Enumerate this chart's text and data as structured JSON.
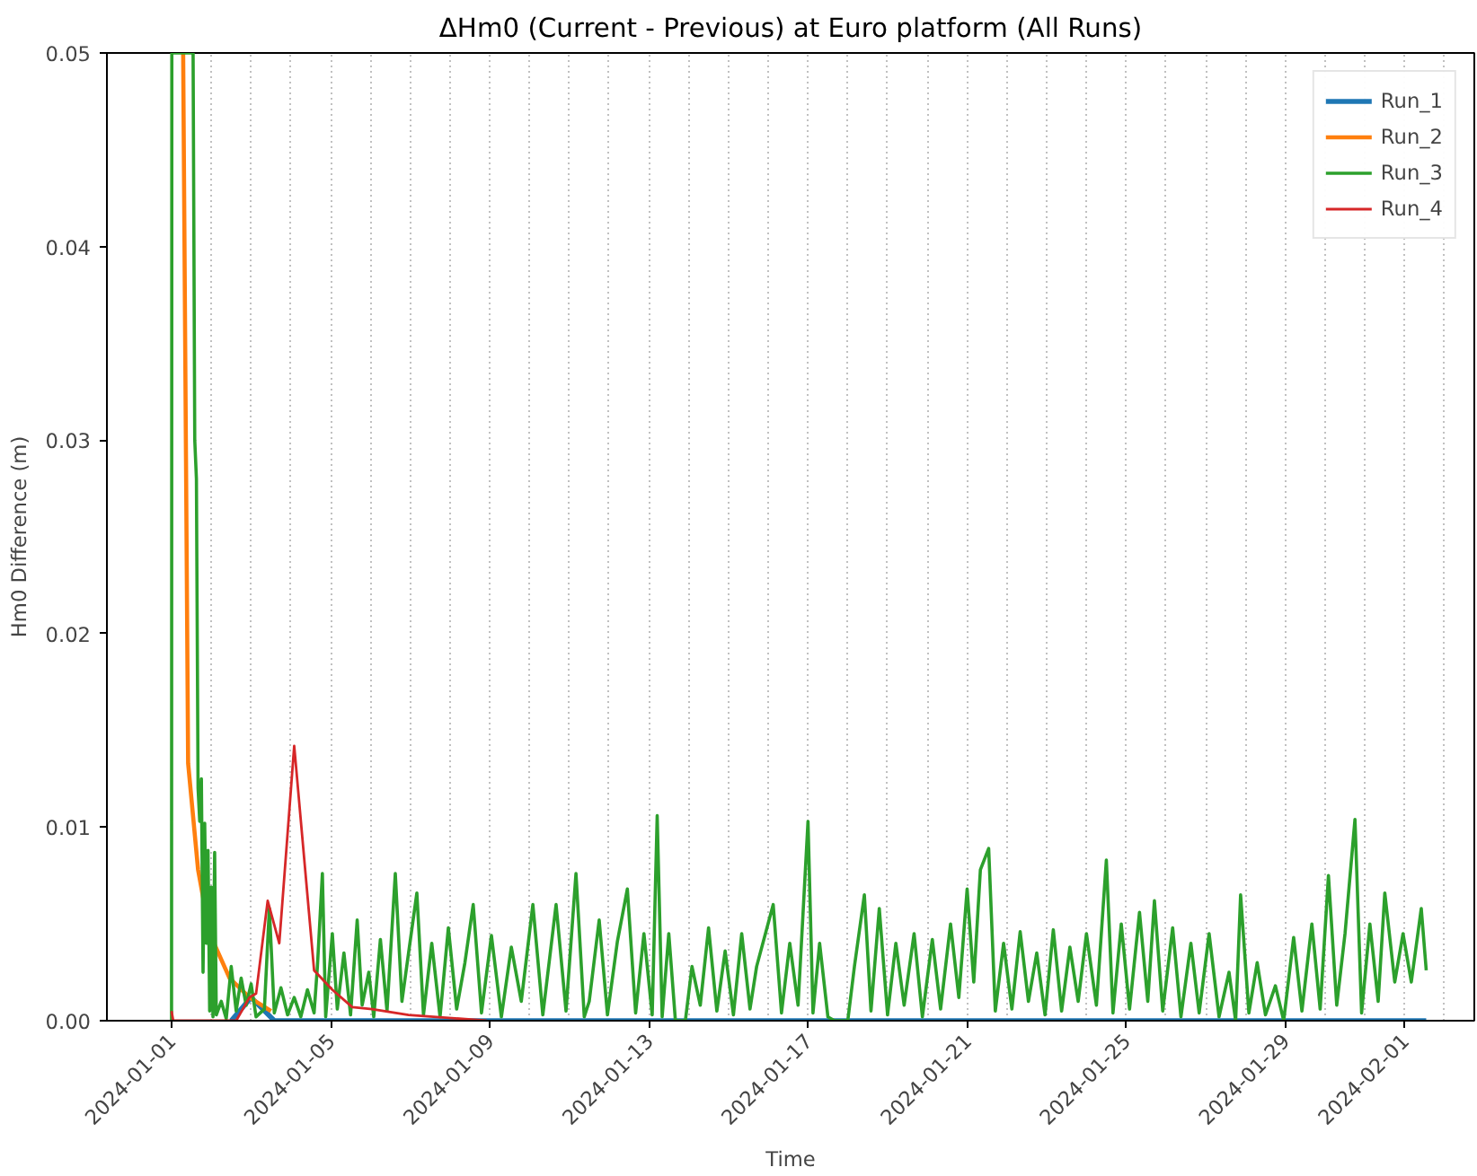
{
  "chart_data": {
    "type": "line",
    "title": "ΔHm0 (Current - Previous) at Euro platform (All Runs)",
    "xlabel": "Time",
    "ylabel": "Hm0 Difference (m)",
    "xlim": [
      "2023-12-30T09:00",
      "2024-02-02T18:00"
    ],
    "ylim": [
      0,
      0.05
    ],
    "xticks": [
      {
        "value": "2024-01-01",
        "label": "2024-01-01"
      },
      {
        "value": "2024-01-02",
        "label": null
      },
      {
        "value": "2024-01-03",
        "label": null
      },
      {
        "value": "2024-01-04",
        "label": null
      },
      {
        "value": "2024-01-05",
        "label": "2024-01-05"
      },
      {
        "value": "2024-01-06",
        "label": null
      },
      {
        "value": "2024-01-07",
        "label": null
      },
      {
        "value": "2024-01-08",
        "label": null
      },
      {
        "value": "2024-01-09",
        "label": "2024-01-09"
      },
      {
        "value": "2024-01-10",
        "label": null
      },
      {
        "value": "2024-01-11",
        "label": null
      },
      {
        "value": "2024-01-12",
        "label": null
      },
      {
        "value": "2024-01-13",
        "label": "2024-01-13"
      },
      {
        "value": "2024-01-14",
        "label": null
      },
      {
        "value": "2024-01-15",
        "label": null
      },
      {
        "value": "2024-01-16",
        "label": null
      },
      {
        "value": "2024-01-17",
        "label": "2024-01-17"
      },
      {
        "value": "2024-01-18",
        "label": null
      },
      {
        "value": "2024-01-19",
        "label": null
      },
      {
        "value": "2024-01-20",
        "label": null
      },
      {
        "value": "2024-01-21",
        "label": "2024-01-21"
      },
      {
        "value": "2024-01-22",
        "label": null
      },
      {
        "value": "2024-01-23",
        "label": null
      },
      {
        "value": "2024-01-24",
        "label": null
      },
      {
        "value": "2024-01-25",
        "label": "2024-01-25"
      },
      {
        "value": "2024-01-26",
        "label": null
      },
      {
        "value": "2024-01-27",
        "label": null
      },
      {
        "value": "2024-01-28",
        "label": null
      },
      {
        "value": "2024-01-29",
        "label": "2024-01-29"
      },
      {
        "value": "2024-01-30",
        "label": null
      },
      {
        "value": "2024-01-31",
        "label": null
      },
      {
        "value": "2024-02-01",
        "label": "2024-02-01"
      },
      {
        "value": "2024-02-02",
        "label": null
      }
    ],
    "yticks": [
      {
        "value": 0,
        "label": "0.00"
      },
      {
        "value": 0.01,
        "label": "0.01"
      },
      {
        "value": 0.02,
        "label": "0.02"
      },
      {
        "value": 0.03,
        "label": "0.03"
      },
      {
        "value": 0.04,
        "label": "0.04"
      },
      {
        "value": 0.05,
        "label": "0.05"
      }
    ],
    "grid": "x",
    "legend": "top right",
    "line_style": "solid",
    "series": [
      {
        "name": "Run_1",
        "color": "#1f77b4",
        "x": [
          "2024-01-02T12:00",
          "2024-01-03T00:00",
          "2024-01-03T07:00",
          "2024-01-03T14:00",
          "2024-02-01T13:00"
        ],
        "values": [
          0,
          0.0012,
          0.0006,
          0,
          0
        ]
      },
      {
        "name": "Run_2",
        "color": "#ff7f0e",
        "x": [
          "2024-01-01T07:00",
          "2024-01-01T10:00",
          "2024-01-01T16:00",
          "2024-01-01T23:00",
          "2024-01-02T11:00",
          "2024-01-02T23:00",
          "2024-01-03T12:00"
        ],
        "values": [
          0.05,
          0.0133,
          0.0078,
          0.0045,
          0.0022,
          0.0012,
          0.0005
        ]
      },
      {
        "name": "Run_3",
        "color": "#2ca02c",
        "x": [
          "2024-01-01T00:00",
          "2024-01-01T00:10",
          "2024-01-01T13:00",
          "2024-01-01T14:00",
          "2024-01-01T15:00",
          "2024-01-01T16:00",
          "2024-01-01T17:00",
          "2024-01-01T18:00",
          "2024-01-01T19:00",
          "2024-01-01T20:00",
          "2024-01-01T21:00",
          "2024-01-01T22:00",
          "2024-01-01T23:00",
          "2024-01-02T00:00",
          "2024-01-02T01:00",
          "2024-01-02T02:00",
          "2024-01-02T03:00",
          "2024-01-02T06:00",
          "2024-01-02T09:00",
          "2024-01-02T12:00",
          "2024-01-02T15:00",
          "2024-01-02T18:00",
          "2024-01-02T21:00",
          "2024-01-03T00:00",
          "2024-01-03T03:00",
          "2024-01-03T08:00",
          "2024-01-03T11:00",
          "2024-01-03T14:00",
          "2024-01-03T18:00",
          "2024-01-03T22:00",
          "2024-01-04T02:00",
          "2024-01-04T06:00",
          "2024-01-04T10:00",
          "2024-01-04T14:00",
          "2024-01-04T16:00",
          "2024-01-04T19:00",
          "2024-01-04T21:00",
          "2024-01-05T01:00",
          "2024-01-05T04:00",
          "2024-01-05T08:00",
          "2024-01-05T12:00",
          "2024-01-05T16:00",
          "2024-01-05T19:00",
          "2024-01-05T23:00",
          "2024-01-06T02:00",
          "2024-01-06T06:00",
          "2024-01-06T10:00",
          "2024-01-06T15:00",
          "2024-01-06T19:00",
          "2024-01-06T23:00",
          "2024-01-07T04:00",
          "2024-01-07T08:00",
          "2024-01-07T13:00",
          "2024-01-07T18:00",
          "2024-01-07T23:00",
          "2024-01-08T04:00",
          "2024-01-08T09:00",
          "2024-01-08T14:00",
          "2024-01-08T19:00",
          "2024-01-09T01:00",
          "2024-01-09T07:00",
          "2024-01-09T13:00",
          "2024-01-09T19:00",
          "2024-01-10T02:00",
          "2024-01-10T08:00",
          "2024-01-10T16:00",
          "2024-01-10T22:00",
          "2024-01-11T04:00",
          "2024-01-11T09:00",
          "2024-01-11T12:00",
          "2024-01-11T18:00",
          "2024-01-11T23:00",
          "2024-01-12T05:00",
          "2024-01-12T11:00",
          "2024-01-12T16:00",
          "2024-01-12T21:00",
          "2024-01-13T02:00",
          "2024-01-13T05:00",
          "2024-01-13T08:00",
          "2024-01-13T12:00",
          "2024-01-13T16:00",
          "2024-01-13T22:00",
          "2024-01-14T02:00",
          "2024-01-14T07:00",
          "2024-01-14T12:00",
          "2024-01-14T17:00",
          "2024-01-14T22:00",
          "2024-01-15T03:00",
          "2024-01-15T08:00",
          "2024-01-15T13:00",
          "2024-01-15T17:00",
          "2024-01-16T03:00",
          "2024-01-16T08:00",
          "2024-01-16T13:00",
          "2024-01-16T18:00",
          "2024-01-17T00:00",
          "2024-01-17T03:00",
          "2024-01-17T07:00",
          "2024-01-17T12:00",
          "2024-01-17T16:00",
          "2024-01-18T00:00",
          "2024-01-18T04:00",
          "2024-01-18T10:00",
          "2024-01-18T14:00",
          "2024-01-18T19:00",
          "2024-01-19T00:00",
          "2024-01-19T05:00",
          "2024-01-19T10:00",
          "2024-01-19T16:00",
          "2024-01-19T21:00",
          "2024-01-20T03:00",
          "2024-01-20T08:00",
          "2024-01-20T14:00",
          "2024-01-20T19:00",
          "2024-01-21T00:00",
          "2024-01-21T04:00",
          "2024-01-21T08:00",
          "2024-01-21T13:00",
          "2024-01-21T17:00",
          "2024-01-21T22:00",
          "2024-01-22T03:00",
          "2024-01-22T08:00",
          "2024-01-22T13:00",
          "2024-01-22T18:00",
          "2024-01-22T23:00",
          "2024-01-23T04:00",
          "2024-01-23T09:00",
          "2024-01-23T14:00",
          "2024-01-23T19:00",
          "2024-01-24T00:00",
          "2024-01-24T06:00",
          "2024-01-24T12:00",
          "2024-01-24T16:00",
          "2024-01-24T21:00",
          "2024-01-25T02:00",
          "2024-01-25T08:00",
          "2024-01-25T13:00",
          "2024-01-25T17:00",
          "2024-01-25T22:00",
          "2024-01-26T04:00",
          "2024-01-26T09:00",
          "2024-01-26T15:00",
          "2024-01-26T20:00",
          "2024-01-27T02:00",
          "2024-01-27T08:00",
          "2024-01-27T14:00",
          "2024-01-27T18:00",
          "2024-01-27T21:00",
          "2024-01-28T02:00",
          "2024-01-28T07:00",
          "2024-01-28T12:00",
          "2024-01-28T18:00",
          "2024-01-28T23:00",
          "2024-01-29T05:00",
          "2024-01-29T10:00",
          "2024-01-29T16:00",
          "2024-01-29T21:00",
          "2024-01-30T02:00",
          "2024-01-30T07:00",
          "2024-01-30T12:00",
          "2024-01-30T18:00",
          "2024-01-30T22:00",
          "2024-01-31T03:00",
          "2024-01-31T08:00",
          "2024-01-31T12:00",
          "2024-01-31T18:00",
          "2024-01-31T23:00",
          "2024-02-01T04:00",
          "2024-02-01T10:00",
          "2024-02-01T13:00"
        ],
        "values": [
          0,
          0.05,
          0.05,
          0.03,
          0.028,
          0.012,
          0.0103,
          0.0125,
          0.0025,
          0.0102,
          0.004,
          0.0088,
          0.0005,
          0.0069,
          0.0002,
          0.0087,
          0.0003,
          0.001,
          0.0001,
          0.0028,
          0.0005,
          0.0022,
          0.0008,
          0.0019,
          0.0002,
          0.0006,
          0.0058,
          0.0004,
          0.0017,
          0.0003,
          0.0012,
          0.0002,
          0.0016,
          0.0004,
          0.0028,
          0.0076,
          0.0002,
          0.0045,
          0.0006,
          0.0035,
          0.0003,
          0.0052,
          0.0008,
          0.0025,
          0.0002,
          0.0042,
          0.0005,
          0.0076,
          0.001,
          0.0035,
          0.0066,
          0.0003,
          0.004,
          0.0002,
          0.0048,
          0.0006,
          0.003,
          0.006,
          0.0004,
          0.0044,
          0.0002,
          0.0038,
          0.001,
          0.006,
          0.0003,
          0.006,
          0.0005,
          0.0076,
          0.0002,
          0.001,
          0.0052,
          0.0003,
          0.0041,
          0.0068,
          0.0004,
          0.0045,
          0.0003,
          0.0106,
          0.0002,
          0.0045,
          0,
          0,
          0.0028,
          0.0008,
          0.0048,
          0.0005,
          0.0036,
          0.0003,
          0.0045,
          0.0006,
          0.0028,
          0.006,
          0.0004,
          0.004,
          0.0008,
          0.0103,
          0.0004,
          0.004,
          0.0002,
          0,
          0,
          0.0028,
          0.0065,
          0.0005,
          0.0058,
          0.0003,
          0.004,
          0.0008,
          0.0045,
          0.0002,
          0.0042,
          0.0006,
          0.005,
          0.0012,
          0.0068,
          0.002,
          0.0078,
          0.0089,
          0.0005,
          0.004,
          0.0006,
          0.0046,
          0.001,
          0.0035,
          0.0003,
          0.0047,
          0.0005,
          0.0038,
          0.001,
          0.0045,
          0.0008,
          0.0083,
          0.0004,
          0.005,
          0.0006,
          0.0056,
          0.001,
          0.0062,
          0.0005,
          0.0048,
          0.0002,
          0.004,
          0.0004,
          0.0045,
          0.0002,
          0.0025,
          0,
          0.0065,
          0.0004,
          0.003,
          0.0003,
          0.0018,
          0,
          0.0043,
          0.0005,
          0.005,
          0.0006,
          0.0075,
          0.0008,
          0.0045,
          0.0104,
          0.0004,
          0.005,
          0.001,
          0.0066,
          0.002,
          0.0045,
          0.002,
          0.0058,
          0.0026
        ]
      },
      {
        "name": "Run_4",
        "color": "#d62728",
        "x": [
          "2024-01-01T00:00",
          "2024-01-01T01:00",
          "2024-01-02T15:00",
          "2024-01-02T23:00",
          "2024-01-03T03:00",
          "2024-01-03T10:00",
          "2024-01-03T17:00",
          "2024-01-04T02:00",
          "2024-01-04T14:00",
          "2024-01-05T01:00",
          "2024-01-05T13:00",
          "2024-01-06T01:00",
          "2024-01-06T23:00",
          "2024-01-08T22:00"
        ],
        "values": [
          0.0005,
          0,
          0,
          0.0012,
          0.0014,
          0.0062,
          0.004,
          0.0142,
          0.0026,
          0.0016,
          0.0007,
          0.0006,
          0.0003,
          0
        ]
      }
    ]
  }
}
